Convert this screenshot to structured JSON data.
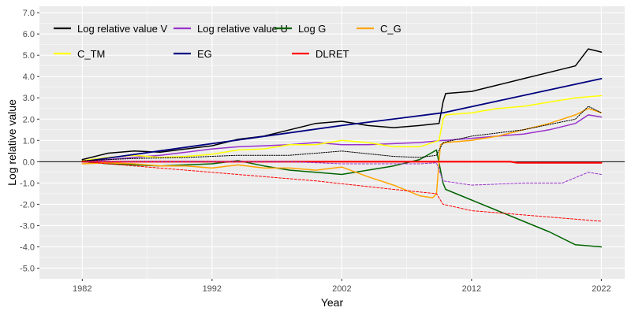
{
  "chart_data": {
    "type": "line",
    "title": "",
    "xlabel": "Year",
    "ylabel": "Log relative value",
    "xlim": [
      1978.7,
      2023.8
    ],
    "ylim": [
      -5.5,
      7.3
    ],
    "x_ticks": [
      1982,
      1992,
      2002,
      2012,
      2022
    ],
    "x_tick_labels": [
      "1982",
      "1992",
      "2002",
      "2012",
      "2022"
    ],
    "y_ticks": [
      -5,
      -4,
      -3,
      -2,
      -1,
      0,
      1,
      2,
      3,
      4,
      5,
      6,
      7
    ],
    "y_tick_labels": [
      "-5.0",
      "-4.0",
      "-3.0",
      "-2.0",
      "-1.0",
      "0.0",
      "1.0",
      "2.0",
      "3.0",
      "4.0",
      "5.0",
      "6.0",
      "7.0"
    ],
    "zero_line": 0,
    "grid": true,
    "legend_position": "top-left",
    "legend": [
      {
        "label": "Log relative value V",
        "color": "#000000"
      },
      {
        "label": "Log relative value U",
        "color": "#9932cc"
      },
      {
        "label": "Log G",
        "color": "#006400"
      },
      {
        "label": "C_G",
        "color": "#ffa500"
      },
      {
        "label": "C_TM",
        "color": "#ffff00"
      },
      {
        "label": "EG",
        "color": "#000080"
      },
      {
        "label": "DLRET",
        "color": "#ff0000"
      }
    ],
    "series": [
      {
        "name": "Log relative value V",
        "color": "#000000",
        "width": 1.5,
        "dash": "",
        "x": [
          1982,
          1984,
          1986,
          1988,
          1990,
          1992,
          1994,
          1996,
          1998,
          2000,
          2002,
          2004,
          2006,
          2008,
          2009.5,
          2009.8,
          2010,
          2012,
          2014,
          2016,
          2018,
          2020,
          2021,
          2022
        ],
        "y": [
          0.1,
          0.4,
          0.5,
          0.45,
          0.6,
          0.75,
          1.05,
          1.2,
          1.5,
          1.8,
          1.9,
          1.7,
          1.6,
          1.7,
          1.8,
          2.8,
          3.2,
          3.3,
          3.6,
          3.9,
          4.2,
          4.5,
          5.3,
          5.15
        ]
      },
      {
        "name": "Log relative value U",
        "color": "#9932cc",
        "width": 1.5,
        "dash": "",
        "x": [
          1982,
          1984,
          1986,
          1988,
          1990,
          1992,
          1994,
          1996,
          1998,
          2000,
          2002,
          2004,
          2006,
          2008,
          2009.8,
          2010,
          2012,
          2014,
          2016,
          2018,
          2020,
          2021,
          2022
        ],
        "y": [
          0.0,
          0.1,
          0.2,
          0.3,
          0.45,
          0.6,
          0.7,
          0.75,
          0.8,
          0.9,
          0.8,
          0.8,
          0.85,
          0.9,
          1.0,
          1.0,
          1.1,
          1.2,
          1.3,
          1.5,
          1.8,
          2.2,
          2.1
        ]
      },
      {
        "name": "Log G",
        "color": "#006400",
        "width": 1.5,
        "dash": "",
        "x": [
          1982,
          1984,
          1986,
          1988,
          1990,
          1992,
          1994,
          1996,
          1998,
          2000,
          2002,
          2004,
          2006,
          2008,
          2009.3,
          2009.8,
          2010,
          2012,
          2014,
          2016,
          2018,
          2020,
          2021,
          2022
        ],
        "y": [
          0.0,
          -0.1,
          -0.15,
          -0.2,
          -0.15,
          -0.1,
          0.05,
          -0.2,
          -0.4,
          -0.5,
          -0.6,
          -0.4,
          -0.2,
          0.1,
          0.55,
          -1.0,
          -1.3,
          -1.8,
          -2.3,
          -2.8,
          -3.3,
          -3.9,
          -3.95,
          -4.0
        ]
      },
      {
        "name": "C_G",
        "color": "#ffa500",
        "width": 1.5,
        "dash": "",
        "x": [
          1982,
          1984,
          1986,
          1988,
          1990,
          1992,
          1994,
          1996,
          1998,
          2000,
          2002,
          2004,
          2006,
          2008,
          2009,
          2009.3,
          2009.6,
          2010,
          2012,
          2014,
          2016,
          2018,
          2020,
          2021,
          2022
        ],
        "y": [
          -0.1,
          -0.05,
          -0.1,
          -0.2,
          -0.2,
          -0.3,
          -0.15,
          -0.3,
          -0.3,
          -0.4,
          -0.25,
          -0.7,
          -1.1,
          -1.6,
          -1.7,
          -1.5,
          0.8,
          0.9,
          1.0,
          1.2,
          1.5,
          1.8,
          2.2,
          2.5,
          2.3
        ]
      },
      {
        "name": "C_TM",
        "color": "#ffff00",
        "width": 1.5,
        "dash": "",
        "x": [
          1982,
          1984,
          1986,
          1988,
          1990,
          1992,
          1994,
          1996,
          1998,
          2000,
          2002,
          2004,
          2006,
          2008,
          2009.5,
          2009.8,
          2010,
          2012,
          2014,
          2016,
          2018,
          2020,
          2022
        ],
        "y": [
          0.05,
          0.2,
          0.3,
          0.2,
          0.25,
          0.35,
          0.55,
          0.6,
          0.8,
          0.8,
          1.0,
          0.9,
          0.7,
          0.7,
          1.0,
          2.0,
          2.2,
          2.3,
          2.5,
          2.6,
          2.8,
          3.0,
          3.1
        ]
      },
      {
        "name": "EG",
        "color": "#000080",
        "width": 1.8,
        "dash": "",
        "x": [
          1982,
          1992,
          2002,
          2009.8,
          2022
        ],
        "y": [
          0.0,
          0.85,
          1.7,
          2.3,
          3.9
        ]
      },
      {
        "name": "DLRET",
        "color": "#ff0000",
        "width": 2.2,
        "dash": "",
        "x": [
          1982,
          2015,
          2015.5,
          2022
        ],
        "y": [
          0.0,
          0.0,
          -0.05,
          -0.05
        ]
      },
      {
        "name": "V dotted",
        "color": "#000000",
        "width": 1.0,
        "dash": "1.5,1.5",
        "x": [
          1982,
          1986,
          1990,
          1994,
          1998,
          2002,
          2006,
          2008,
          2009.3,
          2009.8,
          2012,
          2016,
          2020,
          2021,
          2022
        ],
        "y": [
          0.05,
          0.15,
          0.2,
          0.3,
          0.3,
          0.5,
          0.25,
          0.2,
          0.3,
          0.9,
          1.2,
          1.5,
          2.0,
          2.6,
          2.3
        ]
      },
      {
        "name": "U dashed",
        "color": "#9932cc",
        "width": 1.0,
        "dash": "3,2",
        "x": [
          1982,
          1986,
          1990,
          1994,
          1998,
          2002,
          2006,
          2008,
          2009.3,
          2009.8,
          2012,
          2016,
          2019,
          2021,
          2022
        ],
        "y": [
          0.0,
          0.0,
          0.0,
          0.0,
          0.0,
          -0.1,
          -0.1,
          -0.1,
          -0.05,
          -0.9,
          -1.1,
          -1.0,
          -1.0,
          -0.5,
          -0.6
        ]
      },
      {
        "name": "Red dashed",
        "color": "#ff0000",
        "width": 1.0,
        "dash": "3,2",
        "x": [
          1982,
          1990,
          2000,
          2006,
          2009.3,
          2009.8,
          2012,
          2016,
          2020,
          2022
        ],
        "y": [
          0.0,
          -0.4,
          -0.9,
          -1.3,
          -1.5,
          -2.0,
          -2.3,
          -2.5,
          -2.7,
          -2.8
        ]
      }
    ]
  }
}
